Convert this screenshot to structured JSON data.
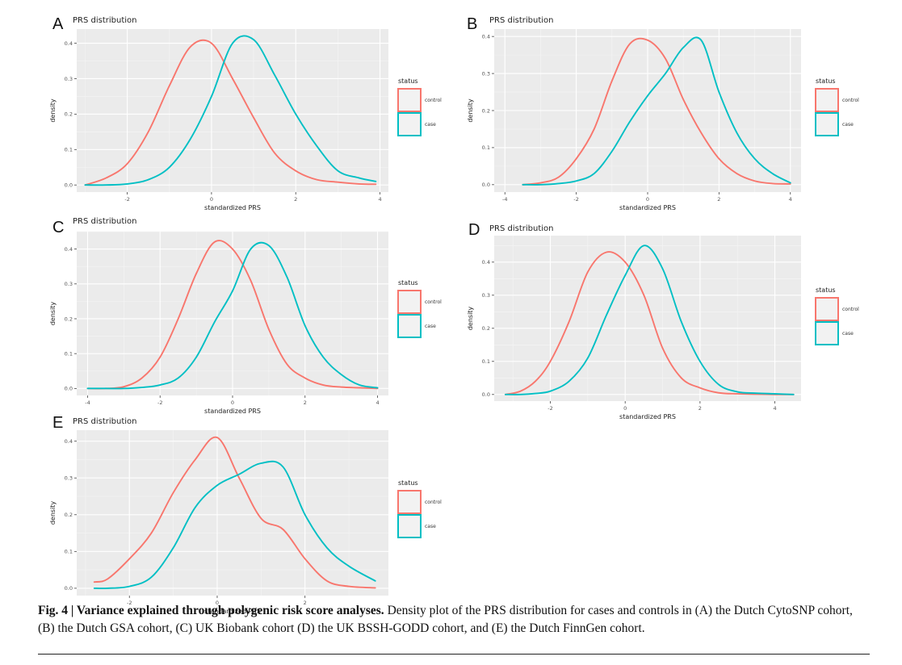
{
  "figure": {
    "panels": [
      {
        "letter": "A",
        "title": "PRS distribution"
      },
      {
        "letter": "B",
        "title": "PRS distribution"
      },
      {
        "letter": "C",
        "title": "PRS distribution"
      },
      {
        "letter": "D",
        "title": "PRS distribution"
      },
      {
        "letter": "E",
        "title": "PRS distribution"
      }
    ],
    "legend_title": "status",
    "legend_labels": [
      "control",
      "case"
    ],
    "colors": {
      "control": "#F8766D",
      "case": "#00BFC4",
      "panel_bg": "#EBEBEB",
      "grid": "#FFFFFF"
    }
  },
  "caption": {
    "prefix": "Fig. 4 | Variance explained through polygenic risk score analyses.",
    "body": " Density plot of the PRS distribution for cases and controls in (A) the Dutch CytoSNP cohort, (B) the Dutch GSA cohort, (C) UK Biobank cohort (D) the UK BSSH-GODD cohort, and (E) the Dutch FinnGen cohort."
  },
  "chart_data": [
    {
      "type": "line",
      "panel": "A",
      "title": "PRS distribution",
      "xlabel": "standardized PRS",
      "ylabel": "density",
      "xlim": [
        -3.2,
        4.2
      ],
      "ylim": [
        -0.02,
        0.44
      ],
      "xticks": [
        -2,
        0,
        2,
        4
      ],
      "yticks": [
        0.0,
        0.1,
        0.2,
        0.3,
        0.4
      ],
      "legend_title": "status",
      "legend_position": "right",
      "grid": true,
      "series": [
        {
          "name": "control",
          "color": "#F8766D",
          "x": [
            -3,
            -2.5,
            -2,
            -1.5,
            -1,
            -0.5,
            0,
            0.5,
            1,
            1.5,
            2,
            2.5,
            3,
            3.5,
            3.9
          ],
          "y": [
            0.0,
            0.02,
            0.06,
            0.15,
            0.28,
            0.39,
            0.4,
            0.3,
            0.19,
            0.09,
            0.04,
            0.015,
            0.008,
            0.003,
            0.002
          ]
        },
        {
          "name": "case",
          "color": "#00BFC4",
          "x": [
            -3,
            -2.5,
            -2,
            -1.5,
            -1,
            -0.5,
            0,
            0.5,
            1,
            1.5,
            2,
            2.5,
            3,
            3.5,
            3.9
          ],
          "y": [
            0.0,
            0.0,
            0.003,
            0.015,
            0.05,
            0.13,
            0.25,
            0.4,
            0.41,
            0.31,
            0.2,
            0.11,
            0.04,
            0.02,
            0.01
          ]
        }
      ]
    },
    {
      "type": "line",
      "panel": "B",
      "title": "PRS distribution",
      "xlabel": "standardized PRS",
      "ylabel": "density",
      "xlim": [
        -4.3,
        4.3
      ],
      "ylim": [
        -0.02,
        0.42
      ],
      "xticks": [
        -4,
        -2,
        0,
        2,
        4
      ],
      "yticks": [
        0.0,
        0.1,
        0.2,
        0.3,
        0.4
      ],
      "legend_title": "status",
      "legend_position": "right",
      "grid": true,
      "series": [
        {
          "name": "control",
          "color": "#F8766D",
          "x": [
            -3.5,
            -3,
            -2.5,
            -2,
            -1.5,
            -1,
            -0.5,
            0,
            0.5,
            1,
            1.5,
            2,
            2.5,
            3,
            3.5,
            4
          ],
          "y": [
            0.0,
            0.005,
            0.02,
            0.07,
            0.15,
            0.28,
            0.38,
            0.39,
            0.34,
            0.23,
            0.14,
            0.07,
            0.03,
            0.01,
            0.003,
            0.002
          ]
        },
        {
          "name": "case",
          "color": "#00BFC4",
          "x": [
            -3.5,
            -3,
            -2.5,
            -2,
            -1.5,
            -1,
            -0.5,
            0,
            0.5,
            1,
            1.5,
            2,
            2.5,
            3,
            3.5,
            4
          ],
          "y": [
            0.0,
            0.0,
            0.003,
            0.01,
            0.03,
            0.09,
            0.17,
            0.24,
            0.3,
            0.37,
            0.39,
            0.25,
            0.14,
            0.07,
            0.03,
            0.005
          ]
        }
      ]
    },
    {
      "type": "line",
      "panel": "C",
      "title": "PRS distribution",
      "xlabel": "standardized PRS",
      "ylabel": "density",
      "xlim": [
        -4.3,
        4.3
      ],
      "ylim": [
        -0.02,
        0.45
      ],
      "xticks": [
        -4,
        -2,
        0,
        2,
        4
      ],
      "yticks": [
        0.0,
        0.1,
        0.2,
        0.3,
        0.4
      ],
      "legend_title": "status",
      "legend_position": "right",
      "grid": true,
      "series": [
        {
          "name": "control",
          "color": "#F8766D",
          "x": [
            -4,
            -3.5,
            -3,
            -2.5,
            -2,
            -1.5,
            -1,
            -0.5,
            0,
            0.5,
            1,
            1.5,
            2,
            2.5,
            3,
            3.5,
            4
          ],
          "y": [
            0.0,
            0.0,
            0.005,
            0.03,
            0.09,
            0.2,
            0.33,
            0.42,
            0.4,
            0.31,
            0.17,
            0.07,
            0.03,
            0.01,
            0.004,
            0.002,
            0.0
          ]
        },
        {
          "name": "case",
          "color": "#00BFC4",
          "x": [
            -4,
            -3.5,
            -3,
            -2.5,
            -2,
            -1.5,
            -1,
            -0.5,
            0,
            0.5,
            1,
            1.5,
            2,
            2.5,
            3,
            3.5,
            4
          ],
          "y": [
            0.0,
            0.0,
            0.0,
            0.003,
            0.01,
            0.03,
            0.09,
            0.19,
            0.28,
            0.4,
            0.41,
            0.32,
            0.18,
            0.09,
            0.04,
            0.01,
            0.002
          ]
        }
      ]
    },
    {
      "type": "line",
      "panel": "D",
      "title": "PRS distribution",
      "xlabel": "standardized PRS",
      "ylabel": "density",
      "xlim": [
        -3.5,
        4.7
      ],
      "ylim": [
        -0.02,
        0.48
      ],
      "xticks": [
        -2,
        0,
        2,
        4
      ],
      "yticks": [
        0.0,
        0.1,
        0.2,
        0.3,
        0.4
      ],
      "legend_title": "status",
      "legend_position": "right",
      "grid": true,
      "series": [
        {
          "name": "control",
          "color": "#F8766D",
          "x": [
            -3.2,
            -2.8,
            -2.4,
            -2,
            -1.5,
            -1,
            -0.5,
            0,
            0.5,
            1,
            1.5,
            2,
            2.5,
            3,
            3.5,
            4,
            4.5
          ],
          "y": [
            0.0,
            0.01,
            0.04,
            0.1,
            0.22,
            0.37,
            0.43,
            0.4,
            0.3,
            0.14,
            0.05,
            0.02,
            0.005,
            0.002,
            0.001,
            0.0,
            0.0
          ]
        },
        {
          "name": "case",
          "color": "#00BFC4",
          "x": [
            -3.2,
            -2.8,
            -2.4,
            -2,
            -1.5,
            -1,
            -0.5,
            0,
            0.5,
            1,
            1.5,
            2,
            2.5,
            3,
            3.5,
            4,
            4.5
          ],
          "y": [
            0.0,
            0.0,
            0.003,
            0.01,
            0.04,
            0.11,
            0.24,
            0.36,
            0.45,
            0.38,
            0.22,
            0.1,
            0.03,
            0.008,
            0.004,
            0.002,
            0.0
          ]
        }
      ]
    },
    {
      "type": "line",
      "panel": "E",
      "title": "PRS distribution",
      "xlabel": "standardized PRS",
      "ylabel": "density",
      "xlim": [
        -3.2,
        3.9
      ],
      "ylim": [
        -0.02,
        0.43
      ],
      "xticks": [
        -2,
        0,
        2
      ],
      "yticks": [
        0.0,
        0.1,
        0.2,
        0.3,
        0.4
      ],
      "legend_title": "status",
      "legend_position": "right",
      "grid": true,
      "series": [
        {
          "name": "control",
          "color": "#F8766D",
          "x": [
            -2.8,
            -2.5,
            -2,
            -1.5,
            -1,
            -0.5,
            0,
            0.5,
            1,
            1.5,
            2,
            2.5,
            3,
            3.6
          ],
          "y": [
            0.017,
            0.025,
            0.08,
            0.15,
            0.26,
            0.35,
            0.41,
            0.3,
            0.19,
            0.16,
            0.08,
            0.02,
            0.005,
            0.001
          ]
        },
        {
          "name": "case",
          "color": "#00BFC4",
          "x": [
            -2.8,
            -2.5,
            -2,
            -1.5,
            -1,
            -0.5,
            0,
            0.5,
            1,
            1.5,
            2,
            2.5,
            3,
            3.6
          ],
          "y": [
            0.0,
            0.0,
            0.005,
            0.03,
            0.11,
            0.22,
            0.28,
            0.31,
            0.34,
            0.33,
            0.2,
            0.11,
            0.06,
            0.02
          ]
        }
      ]
    }
  ]
}
